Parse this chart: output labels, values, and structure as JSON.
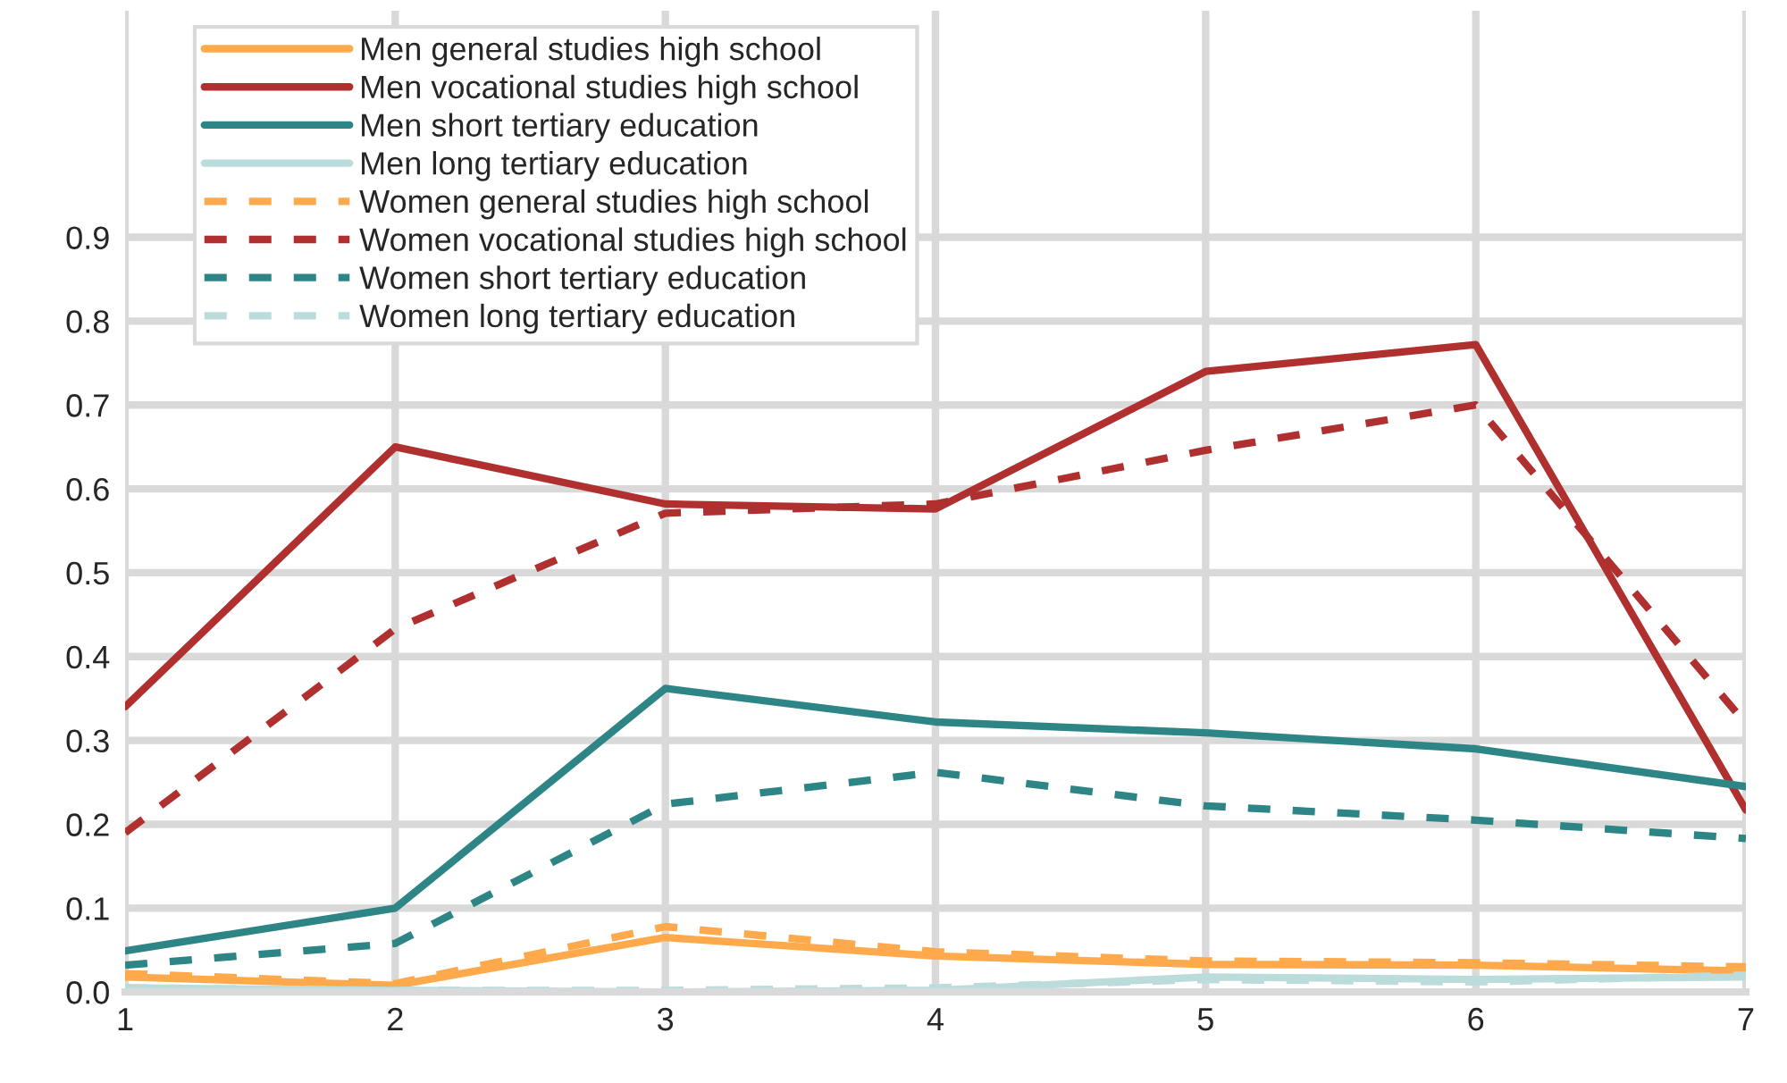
{
  "chart_data": {
    "type": "line",
    "x": [
      1,
      2,
      3,
      4,
      5,
      6,
      7
    ],
    "xlim": [
      1,
      7
    ],
    "xticks": [
      1,
      2,
      3,
      4,
      5,
      6,
      7
    ],
    "ylim": [
      0,
      1.17
    ],
    "yticks": [
      {
        "value": 0,
        "label": "0.0"
      },
      0.1,
      0.2,
      0.3,
      0.4,
      0.5,
      0.6,
      0.7,
      0.8,
      0.9
    ],
    "grid": true,
    "legend": "top left",
    "series": [
      {
        "name": "Men general studies high school",
        "color": "#ffa94d",
        "line_style": "solid",
        "values": [
          0.018,
          0.008,
          0.065,
          0.043,
          0.033,
          0.032,
          0.025
        ]
      },
      {
        "name": "Men vocational studies high school",
        "color": "#b03030",
        "line_style": "solid",
        "values": [
          0.34,
          0.65,
          0.582,
          0.576,
          0.74,
          0.772,
          0.217
        ]
      },
      {
        "name": "Men short tertiary education",
        "color": "#2e8585",
        "line_style": "solid",
        "values": [
          0.049,
          0.1,
          0.362,
          0.322,
          0.309,
          0.29,
          0.245
        ]
      },
      {
        "name": "Men long tertiary education",
        "color": "#bcdcdc",
        "line_style": "solid",
        "values": [
          0.005,
          0.002,
          0.0,
          0.002,
          0.018,
          0.015,
          0.018
        ]
      },
      {
        "name": "Women general studies high school",
        "color": "#ffa94d",
        "line_style": "dashed",
        "values": [
          0.022,
          0.01,
          0.078,
          0.048,
          0.037,
          0.035,
          0.03
        ]
      },
      {
        "name": "Women vocational studies high school",
        "color": "#b03030",
        "line_style": "dashed",
        "values": [
          0.19,
          0.433,
          0.571,
          0.582,
          0.646,
          0.7,
          0.32
        ]
      },
      {
        "name": "Women short tertiary education",
        "color": "#2e8585",
        "line_style": "dashed",
        "values": [
          0.032,
          0.058,
          0.224,
          0.262,
          0.222,
          0.205,
          0.183
        ]
      },
      {
        "name": "Women long tertiary education",
        "color": "#bcdcdc",
        "line_style": "dashed",
        "values": [
          0.005,
          0.002,
          0.002,
          0.005,
          0.015,
          0.012,
          0.02
        ]
      }
    ]
  }
}
